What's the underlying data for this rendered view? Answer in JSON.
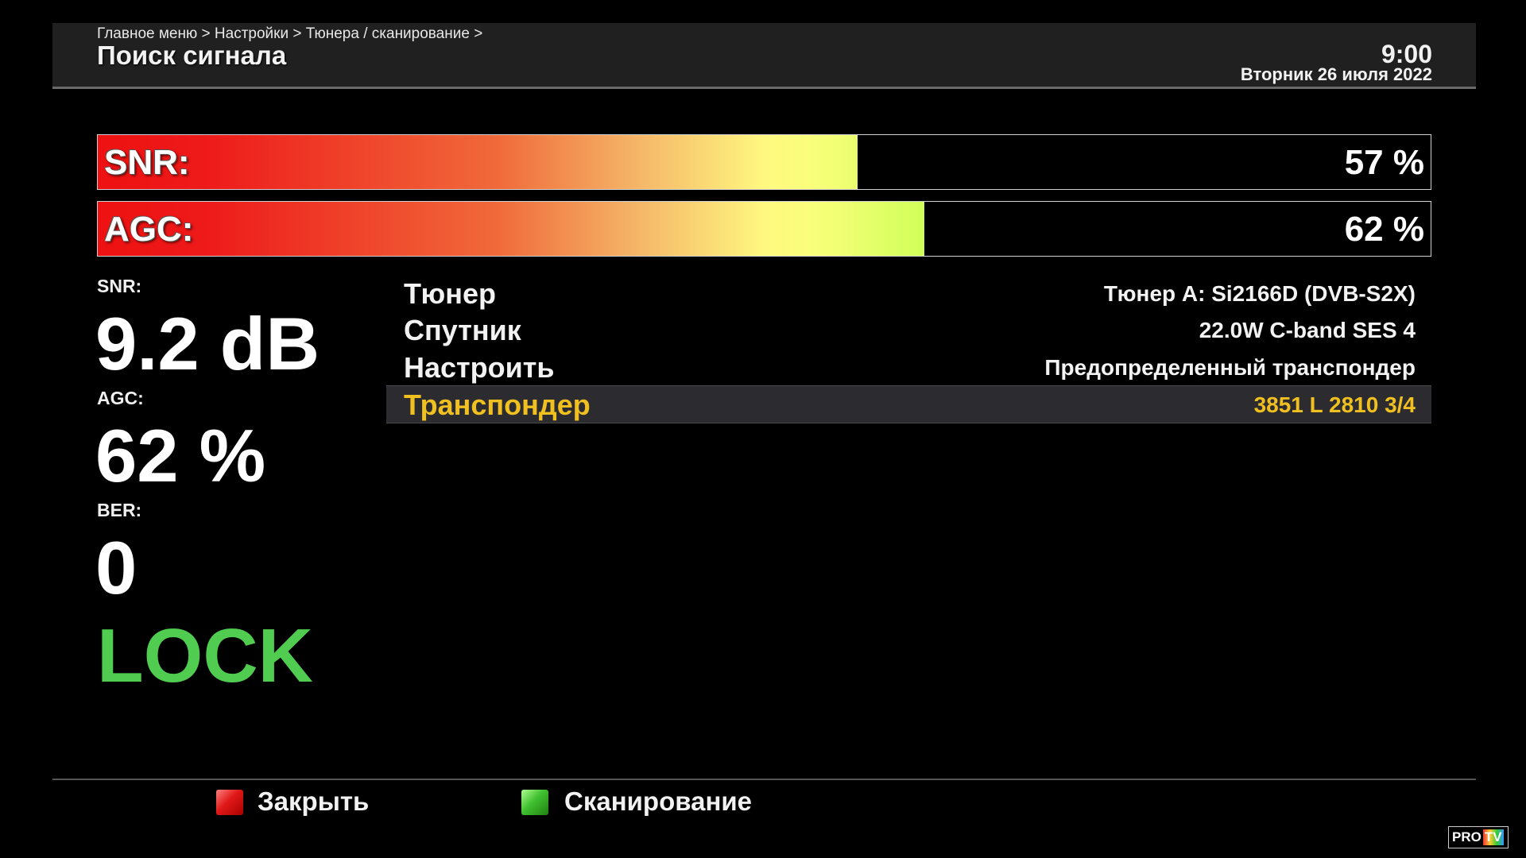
{
  "header": {
    "breadcrumb": "Главное меню > Настройки > Тюнера / сканирование >",
    "title": "Поиск сигнала",
    "time": "9:00",
    "date": "Вторник 26 июля 2022"
  },
  "bars": [
    {
      "label": "SNR:",
      "percent_text": "57 %",
      "level": 57
    },
    {
      "label": "AGC:",
      "percent_text": "62 %",
      "level": 62
    }
  ],
  "stats": {
    "snr_label": "SNR:",
    "snr_value": "9.2 dB",
    "agc_label": "AGC:",
    "agc_value": "62 %",
    "ber_label": "BER:",
    "ber_value": "0",
    "lock_status": "LOCK"
  },
  "settings": [
    {
      "label": "Тюнер",
      "value": "Тюнер A: Si2166D (DVB-S2X)"
    },
    {
      "label": "Спутник",
      "value": "22.0W C-band SES 4"
    },
    {
      "label": "Настроить",
      "value": "Предопределенный транспондер"
    },
    {
      "label": "Транспондер",
      "value": "3851 L 2810 3/4",
      "selected": true
    }
  ],
  "footer": {
    "close_label": "Закрыть",
    "scan_label": "Сканирование"
  },
  "watermark": {
    "text_a": "PRO",
    "text_b": "TV"
  },
  "colors": {
    "lock": "#50cc50",
    "selected": "#f0c020",
    "red_key": "#e01818",
    "green_key": "#40c030"
  }
}
